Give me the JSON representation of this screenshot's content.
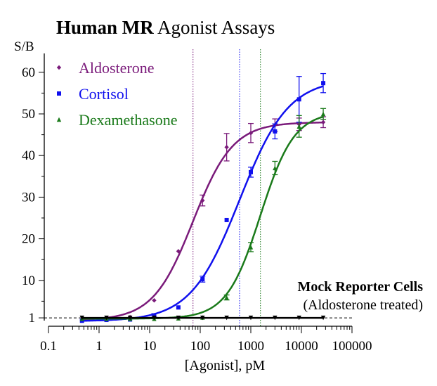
{
  "chart_data": {
    "type": "scatter",
    "title_bold": "Human MR",
    "title_rest": "Agonist Assays",
    "xlabel": "[Agonist], pM",
    "ylabel": "S/B",
    "xscale": "log",
    "xlim": [
      0.1,
      100000
    ],
    "ylim": [
      0,
      62
    ],
    "xticks": [
      "0.1",
      "1",
      "10",
      "100",
      "1000",
      "10000",
      "100000"
    ],
    "yticks": [
      "1",
      "10",
      "20",
      "30",
      "40",
      "50",
      "60"
    ],
    "legend_position": "top-left",
    "annotation": {
      "line1": "Mock Reporter Cells",
      "line2": "(Aldosterone treated)"
    },
    "x": [
      0.46,
      1.4,
      4.1,
      12.3,
      37,
      111,
      333,
      1000,
      3000,
      9000,
      27000
    ],
    "series": [
      {
        "name": "Aldosterone",
        "color": "#7a1a7a",
        "marker": "diamond",
        "values": [
          0.5,
          0.7,
          1.2,
          5.2,
          17,
          29.2,
          42,
          45.4,
          47.3,
          47.5,
          48
        ],
        "errors": [
          0,
          0,
          0,
          0,
          0,
          1.3,
          3.3,
          2.3,
          1.5,
          1.5,
          1.3
        ],
        "fit": {
          "bottom": 0.4,
          "top": 48,
          "ec50": 72,
          "hill": 1.1
        }
      },
      {
        "name": "Cortisol",
        "color": "#1010ee",
        "marker": "square",
        "values": [
          0.3,
          0.5,
          0.6,
          1.6,
          3.5,
          10.3,
          24.5,
          36,
          45.8,
          53.5,
          57.4
        ],
        "errors": [
          0,
          0,
          0,
          0.4,
          0,
          0.7,
          0,
          1.2,
          1.8,
          5.5,
          2.3
        ],
        "fit": {
          "bottom": 0.2,
          "top": 58.5,
          "ec50": 600,
          "hill": 0.9
        }
      },
      {
        "name": "Dexamethasone",
        "color": "#1a7a1a",
        "marker": "triangle",
        "values": [
          0.8,
          0.8,
          0.8,
          0.8,
          0.9,
          1.1,
          5.9,
          18,
          37,
          47,
          50
        ],
        "errors": [
          0,
          0,
          0,
          0,
          0,
          0,
          0.6,
          1.1,
          1.6,
          2.6,
          1.3
        ],
        "fit": {
          "bottom": 0.8,
          "top": 50.5,
          "ec50": 1550,
          "hill": 1.3
        }
      },
      {
        "name": "Mock Reporter Cells",
        "color": "#000000",
        "marker": "triangle-down",
        "values": [
          1,
          1,
          1,
          1,
          1,
          1,
          1,
          1,
          1,
          1,
          1
        ],
        "errors": [
          0,
          0,
          0,
          0,
          0,
          0,
          0,
          0,
          0,
          0,
          0
        ],
        "fit": {
          "bottom": 1,
          "top": 1,
          "ec50": 100,
          "hill": 1
        }
      }
    ],
    "ec50_lines": [
      72,
      600,
      1550
    ],
    "reference_line": 1
  }
}
